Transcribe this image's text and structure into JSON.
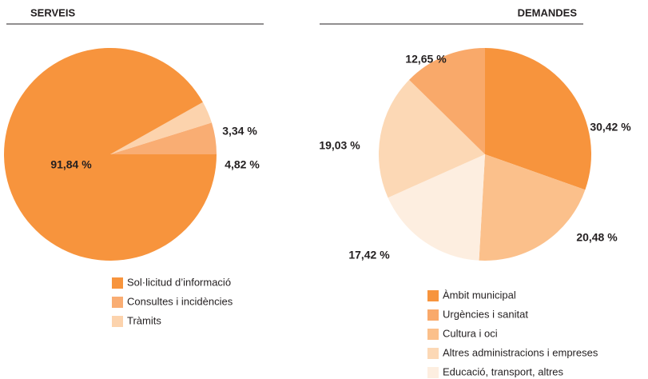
{
  "chart_data": [
    {
      "type": "pie",
      "title": "SERVEIS",
      "categories": [
        "Sol·licitud d’informació",
        "Consultes i incidències",
        "Tràmits"
      ],
      "values": [
        91.84,
        4.82,
        3.34
      ],
      "value_labels": [
        "91,84 %",
        "4,82 %",
        "3,34 %"
      ],
      "colors": [
        "#f7943d",
        "#f9ad73",
        "#fcd3ad"
      ]
    },
    {
      "type": "pie",
      "title": "DEMANDES",
      "categories": [
        "Àmbit municipal",
        "Urgències i sanitat",
        "Cultura i oci",
        "Altres administracions i empreses",
        "Educació, transport, altres"
      ],
      "values": [
        30.42,
        12.65,
        20.48,
        19.03,
        17.42
      ],
      "value_labels": [
        "30,42 %",
        "12,65 %",
        "20,48 %",
        "19,03 %",
        "17,42 %"
      ],
      "colors": [
        "#f7943d",
        "#f9a96a",
        "#fbc08b",
        "#fcd8b5",
        "#fdeee0"
      ]
    }
  ]
}
